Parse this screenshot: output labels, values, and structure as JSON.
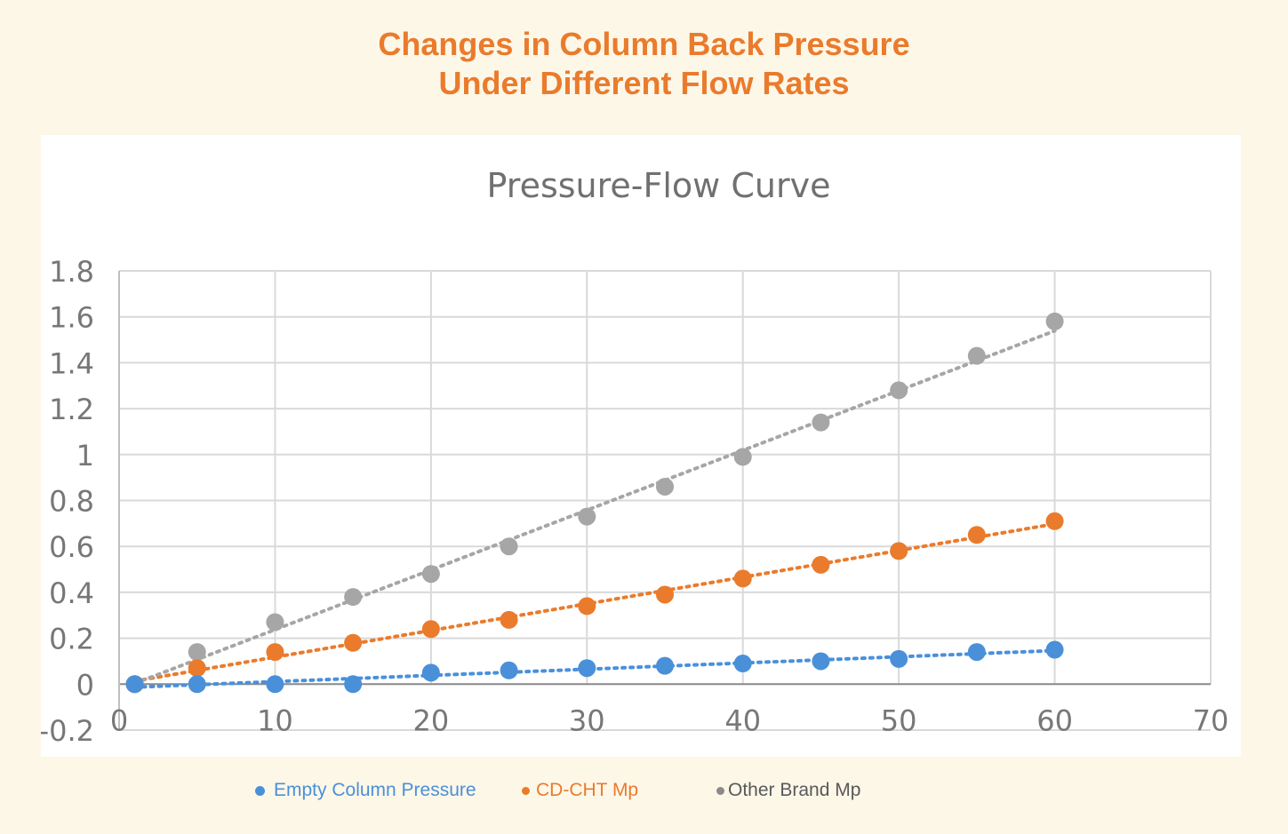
{
  "page": {
    "title_line1": "Changes in Column Back Pressure",
    "title_line2": "Under Different Flow Rates"
  },
  "chart_data": {
    "type": "scatter",
    "title": "Pressure-Flow Curve",
    "xlabel": "",
    "ylabel": "",
    "xlim": [
      0,
      70
    ],
    "ylim": [
      -0.2,
      1.8
    ],
    "x_ticks": [
      "0",
      "10",
      "20",
      "30",
      "40",
      "50",
      "60",
      "70"
    ],
    "y_ticks": [
      "-0.2",
      "0",
      "0.2",
      "0.4",
      "0.6",
      "0.8",
      "1",
      "1.2",
      "1.4",
      "1.6",
      "1.8"
    ],
    "grid": true,
    "trendline": "linear-dotted",
    "legend_position": "bottom",
    "x": [
      1,
      5,
      10,
      15,
      20,
      25,
      30,
      35,
      40,
      45,
      50,
      55,
      60
    ],
    "series": [
      {
        "name": "Empty Column Pressure",
        "color": "#4a90d9",
        "values": [
          0.0,
          0.0,
          0.0,
          0.0,
          0.05,
          0.06,
          0.07,
          0.08,
          0.09,
          0.1,
          0.11,
          0.14,
          0.15
        ]
      },
      {
        "name": "CD-CHT Mp",
        "color": "#ea7b2c",
        "values": [
          0.0,
          0.07,
          0.14,
          0.18,
          0.24,
          0.28,
          0.34,
          0.39,
          0.46,
          0.52,
          0.58,
          0.65,
          0.71
        ]
      },
      {
        "name": "Other Brand Mp",
        "color": "#a6a6a6",
        "values": [
          0.0,
          0.14,
          0.27,
          0.38,
          0.48,
          0.6,
          0.73,
          0.86,
          0.99,
          1.14,
          1.28,
          1.43,
          1.58
        ]
      }
    ]
  }
}
